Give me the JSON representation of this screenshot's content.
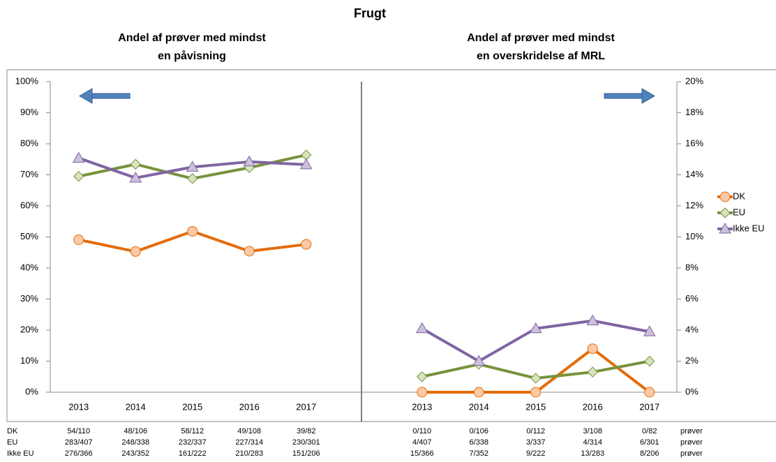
{
  "title": "Frugt",
  "chart_data": [
    {
      "type": "line",
      "title": [
        "Andel af prøver med mindst",
        "en påvisning"
      ],
      "categories": [
        "2013",
        "2014",
        "2015",
        "2016",
        "2017"
      ],
      "ylim": [
        0,
        100
      ],
      "yticks": [
        {
          "value": 0,
          "label": "0%"
        },
        {
          "value": 10,
          "label": "10%"
        },
        {
          "value": 20,
          "label": "20%"
        },
        {
          "value": 30,
          "label": "30%"
        },
        {
          "value": 40,
          "label": "40%"
        },
        {
          "value": 50,
          "label": "50%"
        },
        {
          "value": 60,
          "label": "60%"
        },
        {
          "value": 70,
          "label": "70%"
        },
        {
          "value": 80,
          "label": "80%"
        },
        {
          "value": 90,
          "label": "90%"
        },
        {
          "value": 100,
          "label": "100%"
        }
      ],
      "series": [
        {
          "name": "DK",
          "color": "#e46c0a",
          "marker": "circle",
          "values": [
            49.1,
            45.3,
            51.8,
            45.4,
            47.6
          ]
        },
        {
          "name": "EU",
          "color": "#77933c",
          "marker": "diamond",
          "values": [
            69.5,
            73.4,
            68.8,
            72.3,
            76.4
          ]
        },
        {
          "name": "Ikke EU",
          "color": "#8064a2",
          "marker": "triangle",
          "values": [
            75.4,
            69.0,
            72.5,
            74.2,
            73.3
          ]
        }
      ]
    },
    {
      "type": "line",
      "title": [
        "Andel af prøver med mindst",
        "en overskridelse af MRL"
      ],
      "categories": [
        "2013",
        "2014",
        "2015",
        "2016",
        "2017"
      ],
      "y2lim": [
        0,
        20
      ],
      "y2ticks": [
        {
          "value": 0,
          "label": "0%"
        },
        {
          "value": 2,
          "label": "2%"
        },
        {
          "value": 4,
          "label": "4%"
        },
        {
          "value": 6,
          "label": "6%"
        },
        {
          "value": 8,
          "label": "8%"
        },
        {
          "value": 10,
          "label": "10%"
        },
        {
          "value": 12,
          "label": "12%"
        },
        {
          "value": 14,
          "label": "14%"
        },
        {
          "value": 16,
          "label": "16%"
        },
        {
          "value": 18,
          "label": "18%"
        },
        {
          "value": 20,
          "label": "20%"
        }
      ],
      "legend": "right",
      "series": [
        {
          "name": "DK",
          "color": "#e46c0a",
          "marker": "circle",
          "axis": "y2",
          "values": [
            0,
            0,
            0,
            2.8,
            0
          ]
        },
        {
          "name": "EU",
          "color": "#77933c",
          "marker": "diamond",
          "axis": "y2",
          "values": [
            1.0,
            1.8,
            0.9,
            1.3,
            2.0
          ]
        },
        {
          "name": "Ikke EU",
          "color": "#8064a2",
          "marker": "triangle",
          "axis": "y2",
          "values": [
            4.1,
            2.0,
            4.1,
            4.6,
            3.9
          ]
        }
      ]
    }
  ],
  "table": {
    "rows": [
      {
        "label": "DK",
        "left": [
          "54/110",
          "48/106",
          "58/112",
          "49/108",
          "39/82"
        ],
        "right": [
          "0/110",
          "0/106",
          "0/112",
          "3/108",
          "0/82"
        ],
        "unit": "prøver"
      },
      {
        "label": "EU",
        "left": [
          "283/407",
          "248/338",
          "232/337",
          "227/314",
          "230/301"
        ],
        "right": [
          "4/407",
          "6/338",
          "3/337",
          "4/314",
          "6/301"
        ],
        "unit": "prøver"
      },
      {
        "label": "Ikke EU",
        "left": [
          "276/366",
          "243/352",
          "161/222",
          "210/283",
          "151/206"
        ],
        "right": [
          "15/366",
          "7/352",
          "9/222",
          "13/283",
          "8/206"
        ],
        "unit": "prøver"
      }
    ]
  }
}
